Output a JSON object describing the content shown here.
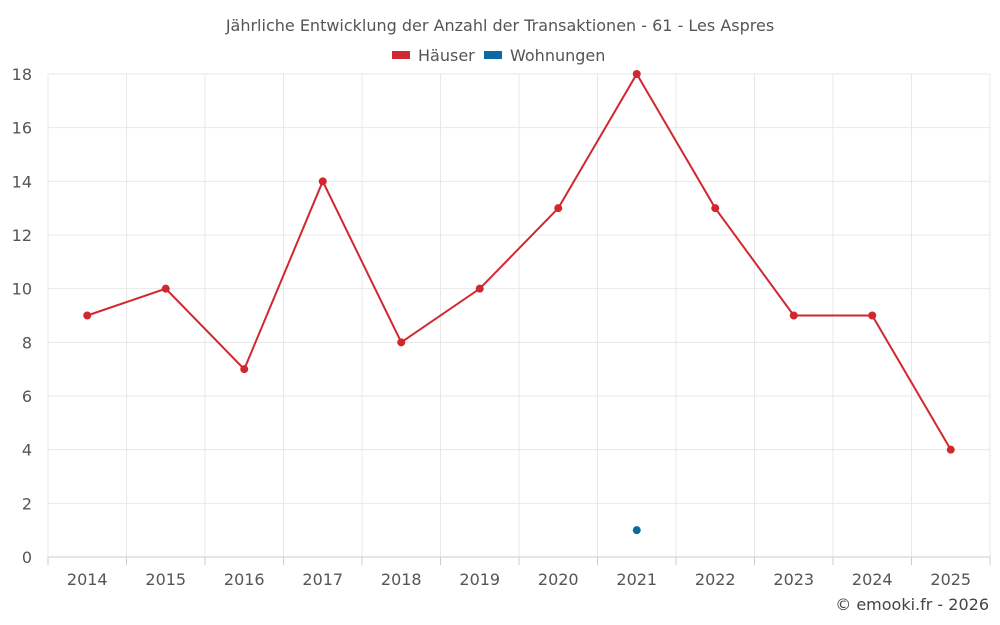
{
  "chart_data": {
    "type": "line",
    "title": "Jährliche Entwicklung der Anzahl der Transaktionen - 61 - Les Aspres",
    "categories": [
      "2014",
      "2015",
      "2016",
      "2017",
      "2018",
      "2019",
      "2020",
      "2021",
      "2022",
      "2023",
      "2024",
      "2025"
    ],
    "series": [
      {
        "name": "Häuser",
        "color": "#d0282e",
        "values": [
          9,
          10,
          7,
          14,
          8,
          10,
          13,
          18,
          13,
          9,
          9,
          4
        ]
      },
      {
        "name": "Wohnungen",
        "color": "#0b6aa2",
        "values": [
          null,
          null,
          null,
          null,
          null,
          null,
          null,
          1,
          null,
          null,
          null,
          null
        ]
      }
    ],
    "ylim": [
      0,
      18
    ],
    "yticks": [
      0,
      2,
      4,
      6,
      8,
      10,
      12,
      14,
      16,
      18
    ],
    "grid": true,
    "legend_position": "top-center"
  },
  "credit": "© emooki.fr - 2026"
}
